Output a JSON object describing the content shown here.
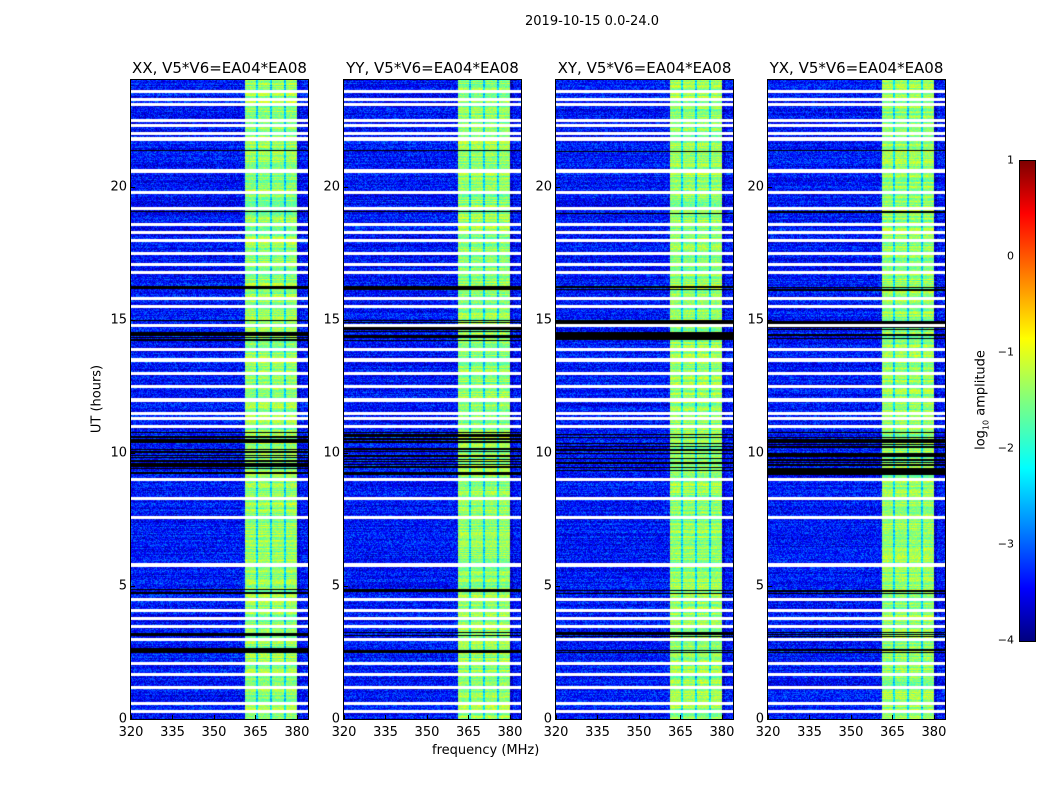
{
  "chart_data": {
    "type": "heatmap",
    "title": "2019-10-15 0.0-24.0",
    "panels": [
      {
        "title": "XX, V5*V6=EA04*EA08"
      },
      {
        "title": "YY, V5*V6=EA04*EA08"
      },
      {
        "title": "XY, V5*V6=EA04*EA08"
      },
      {
        "title": "YX, V5*V6=EA04*EA08"
      }
    ],
    "xlabel": "frequency (MHz)",
    "ylabel": "UT (hours)",
    "xlim": [
      320,
      384
    ],
    "ylim": [
      0,
      24
    ],
    "xticks": [
      "320",
      "335",
      "350",
      "365",
      "380"
    ],
    "xtick_values": [
      320,
      335,
      350,
      365,
      380
    ],
    "yticks": [
      "0",
      "5",
      "10",
      "15",
      "20"
    ],
    "ytick_values": [
      0,
      5,
      10,
      15,
      20
    ],
    "rfi_band_mhz": [
      361,
      380
    ],
    "background_log_amplitude": -3.3,
    "band_log_amplitude": -1.4,
    "colorbar": {
      "label_prefix": "log",
      "label_sub": "10",
      "label_suffix": " amplitude",
      "ticks": [
        "1",
        "0",
        "−1",
        "−2",
        "−3",
        "−4"
      ],
      "tick_values": [
        1,
        0,
        -1,
        -2,
        -3,
        -4
      ],
      "clim": [
        -4,
        1
      ],
      "colormap": "jet"
    }
  }
}
